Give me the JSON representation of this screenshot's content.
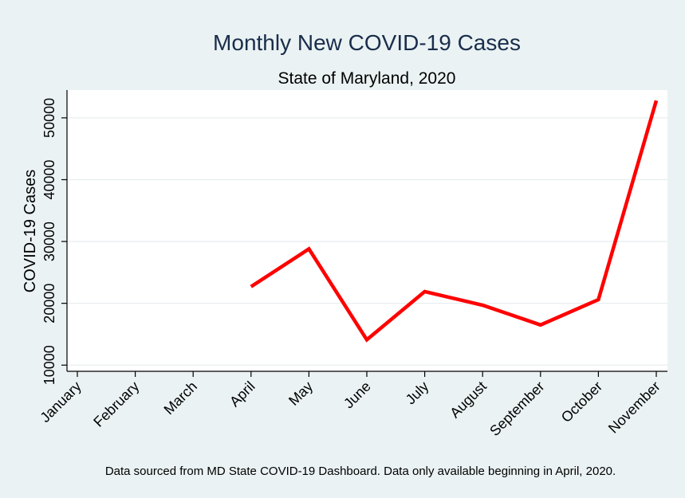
{
  "chart_data": {
    "type": "line",
    "title": "Monthly New COVID-19 Cases",
    "subtitle": "State of Maryland, 2020",
    "ylabel": "COVID-19 Cases",
    "xlabel": "",
    "note": "Data sourced from MD State COVID-19 Dashboard.  Data only available beginning in April, 2020.",
    "categories": [
      "January",
      "February",
      "March",
      "April",
      "May",
      "June",
      "July",
      "August",
      "September",
      "October",
      "November"
    ],
    "yticks": [
      10000,
      20000,
      30000,
      40000,
      50000
    ],
    "ytick_labels": [
      "10000",
      "20000",
      "30000",
      "40000",
      "50000"
    ],
    "ylim": [
      9000,
      54500
    ],
    "grid": true,
    "series": [
      {
        "values": [
          null,
          null,
          null,
          22700,
          28800,
          14100,
          21900,
          19700,
          16500,
          20600,
          52800
        ],
        "color": "#ff0000"
      }
    ]
  }
}
